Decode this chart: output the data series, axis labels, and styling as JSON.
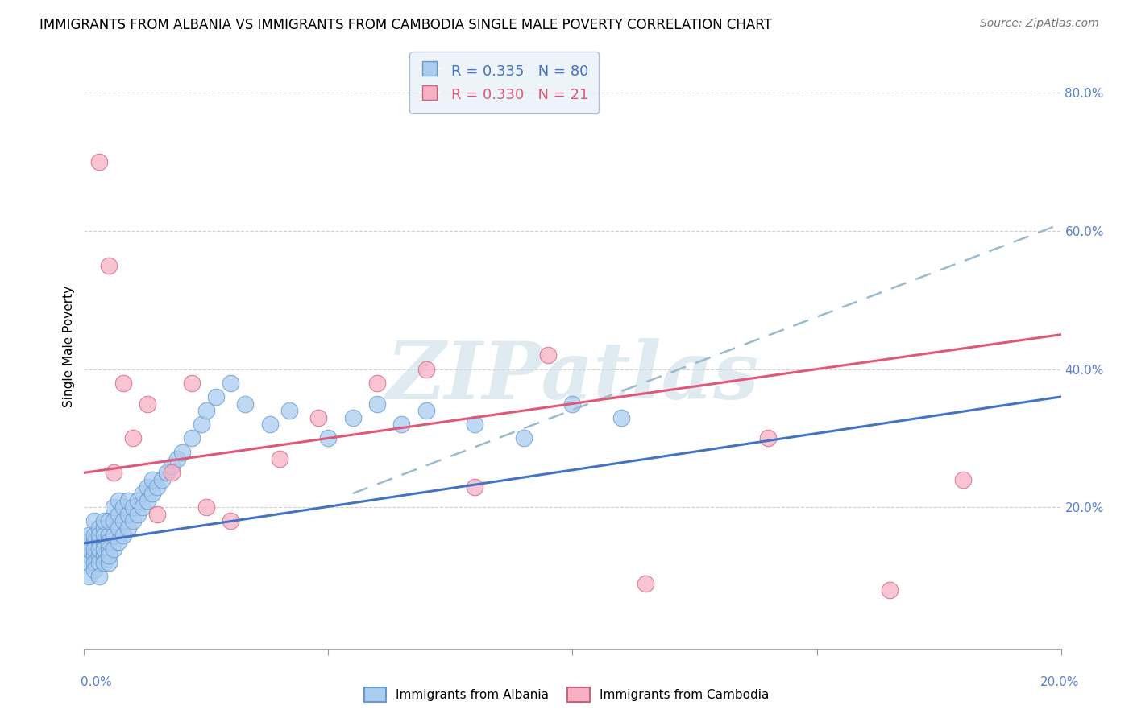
{
  "title": "IMMIGRANTS FROM ALBANIA VS IMMIGRANTS FROM CAMBODIA SINGLE MALE POVERTY CORRELATION CHART",
  "source": "Source: ZipAtlas.com",
  "ylabel": "Single Male Poverty",
  "xlim": [
    0.0,
    0.2
  ],
  "ylim": [
    -0.005,
    0.87
  ],
  "albania_R": 0.335,
  "albania_N": 80,
  "cambodia_R": 0.33,
  "cambodia_N": 21,
  "albania_color": "#aaccf0",
  "albania_edge_color": "#6699cc",
  "albania_line_color": "#4472c4",
  "cambodia_color": "#f8b0c4",
  "cambodia_edge_color": "#d06080",
  "cambodia_line_color": "#e05878",
  "dashed_line_color": "#99bbcc",
  "watermark_color": "#ccdde8",
  "legend_box_color": "#e8f2f8",
  "grid_color": "#cccccc",
  "tick_color": "#5580cc",
  "albania_scatter_x": [
    0.001,
    0.001,
    0.001,
    0.001,
    0.001,
    0.001,
    0.002,
    0.002,
    0.002,
    0.002,
    0.002,
    0.002,
    0.002,
    0.003,
    0.003,
    0.003,
    0.003,
    0.003,
    0.003,
    0.003,
    0.004,
    0.004,
    0.004,
    0.004,
    0.004,
    0.004,
    0.004,
    0.005,
    0.005,
    0.005,
    0.005,
    0.005,
    0.005,
    0.006,
    0.006,
    0.006,
    0.006,
    0.007,
    0.007,
    0.007,
    0.007,
    0.008,
    0.008,
    0.008,
    0.009,
    0.009,
    0.009,
    0.01,
    0.01,
    0.011,
    0.011,
    0.012,
    0.012,
    0.013,
    0.013,
    0.014,
    0.014,
    0.015,
    0.016,
    0.017,
    0.018,
    0.019,
    0.02,
    0.022,
    0.024,
    0.025,
    0.027,
    0.03,
    0.033,
    0.038,
    0.042,
    0.05,
    0.055,
    0.06,
    0.065,
    0.07,
    0.08,
    0.09,
    0.1,
    0.11
  ],
  "albania_scatter_y": [
    0.13,
    0.15,
    0.12,
    0.16,
    0.14,
    0.1,
    0.13,
    0.15,
    0.14,
    0.12,
    0.16,
    0.18,
    0.11,
    0.13,
    0.15,
    0.17,
    0.12,
    0.14,
    0.16,
    0.1,
    0.13,
    0.15,
    0.17,
    0.14,
    0.12,
    0.16,
    0.18,
    0.14,
    0.16,
    0.12,
    0.18,
    0.13,
    0.15,
    0.14,
    0.16,
    0.18,
    0.2,
    0.15,
    0.17,
    0.19,
    0.21,
    0.16,
    0.18,
    0.2,
    0.17,
    0.19,
    0.21,
    0.18,
    0.2,
    0.19,
    0.21,
    0.2,
    0.22,
    0.21,
    0.23,
    0.22,
    0.24,
    0.23,
    0.24,
    0.25,
    0.26,
    0.27,
    0.28,
    0.3,
    0.32,
    0.34,
    0.36,
    0.38,
    0.35,
    0.32,
    0.34,
    0.3,
    0.33,
    0.35,
    0.32,
    0.34,
    0.32,
    0.3,
    0.35,
    0.33
  ],
  "cambodia_scatter_x": [
    0.003,
    0.005,
    0.006,
    0.008,
    0.01,
    0.013,
    0.015,
    0.018,
    0.022,
    0.025,
    0.03,
    0.04,
    0.048,
    0.06,
    0.07,
    0.08,
    0.095,
    0.115,
    0.14,
    0.165,
    0.18
  ],
  "cambodia_scatter_y": [
    0.7,
    0.55,
    0.25,
    0.38,
    0.3,
    0.35,
    0.19,
    0.25,
    0.38,
    0.2,
    0.18,
    0.27,
    0.33,
    0.38,
    0.4,
    0.23,
    0.42,
    0.09,
    0.3,
    0.08,
    0.24
  ],
  "albania_line_x": [
    0.0,
    0.2
  ],
  "albania_line_y": [
    0.148,
    0.36
  ],
  "cambodia_line_x": [
    0.0,
    0.2
  ],
  "cambodia_line_y": [
    0.25,
    0.45
  ],
  "dashed_line_x": [
    0.055,
    0.2
  ],
  "dashed_line_y": [
    0.22,
    0.61
  ]
}
